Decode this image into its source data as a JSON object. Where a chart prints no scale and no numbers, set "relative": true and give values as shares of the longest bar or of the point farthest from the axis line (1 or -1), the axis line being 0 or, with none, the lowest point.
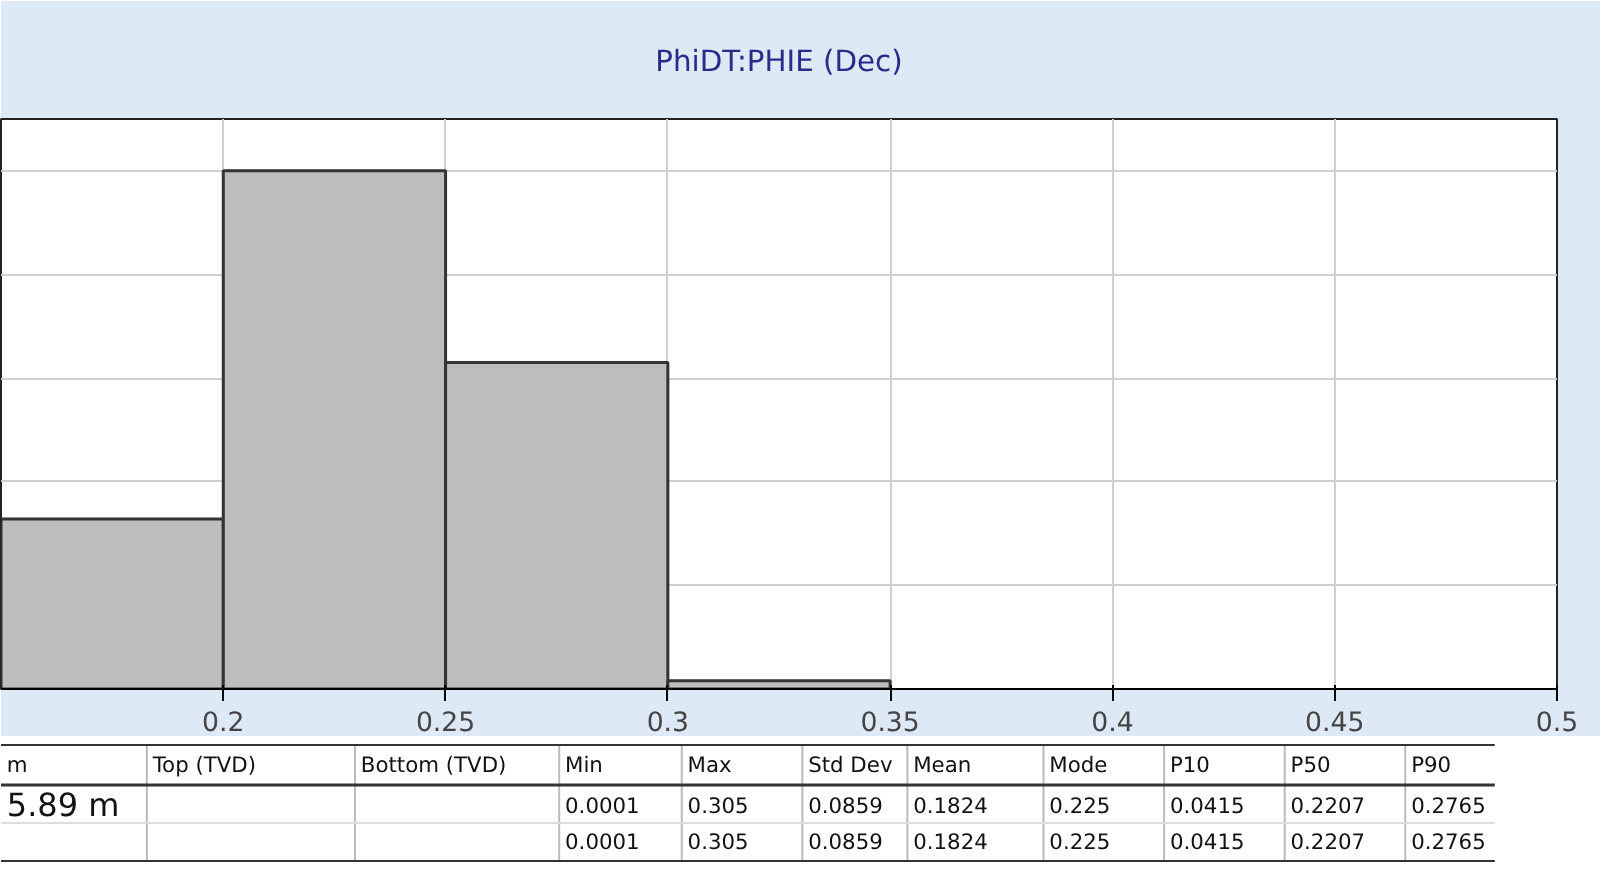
{
  "chart_data": {
    "type": "bar",
    "title": "PhiDT:PHIE (Dec)",
    "relative": true,
    "x": [
      0.175,
      0.225,
      0.275,
      0.325
    ],
    "values": [
      0.328,
      1,
      0.63,
      0.016
    ],
    "color": "#bdbdbd",
    "xlim": [
      0.15,
      0.5
    ],
    "xticks": [
      0.2,
      0.25,
      0.3,
      0.35,
      0.4,
      0.45,
      0.5
    ],
    "grid": true,
    "annotations": [
      "m",
      "Top (TVD)",
      "Bottom (TVD)",
      "Min",
      "Max",
      "Std Dev",
      "Mean",
      "Mode",
      "P10",
      "P50",
      "P90",
      "5.89 m",
      "0.0001",
      "0.305",
      "0.0859",
      "0.1824",
      "0.225",
      "0.0415",
      "0.2207",
      "0.2765",
      "0.0001",
      "0.305",
      "0.0859",
      "0.1824",
      "0.225",
      "0.0415",
      "0.2207",
      "0.2765"
    ]
  }
}
